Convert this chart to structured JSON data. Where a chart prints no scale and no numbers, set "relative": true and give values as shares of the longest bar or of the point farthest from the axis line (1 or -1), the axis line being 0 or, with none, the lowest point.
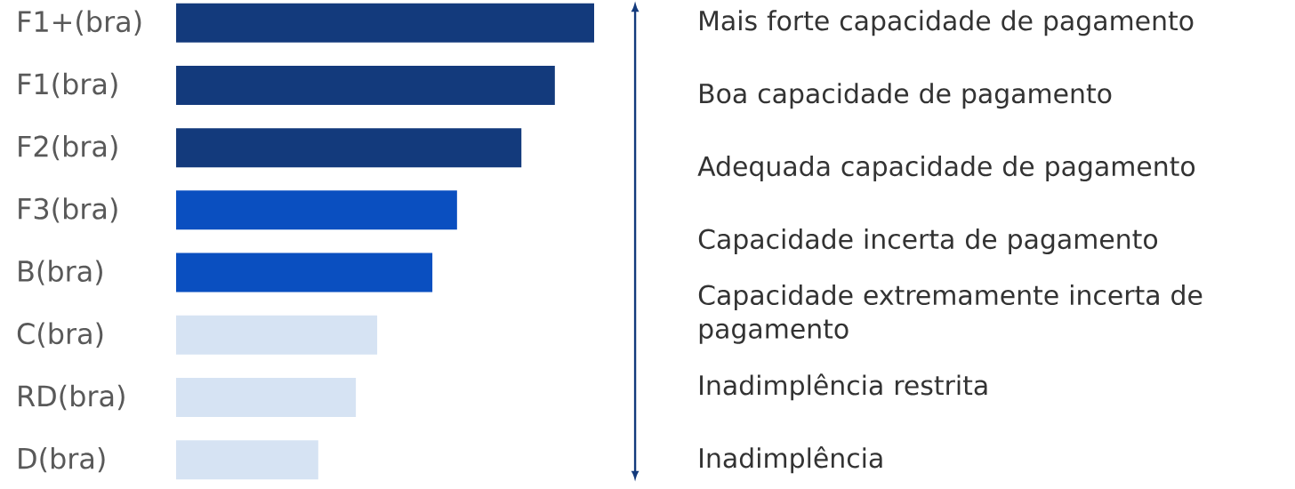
{
  "chart_data": {
    "type": "bar",
    "orientation": "horizontal",
    "relative": true,
    "categories": [
      "F1+(bra)",
      "F1(bra)",
      "F2(bra)",
      "F3(bra)",
      "B(bra)",
      "C(bra)",
      "RD(bra)",
      "D(bra)"
    ],
    "values": [
      1,
      0.906,
      0.826,
      0.672,
      0.613,
      0.481,
      0.43,
      0.34
    ],
    "colors": [
      "#133a7c",
      "#133a7c",
      "#133a7c",
      "#0a4fc0",
      "#0a4fc0",
      "#d6e3f3",
      "#d6e3f3",
      "#d6e3f3"
    ],
    "annotations": [
      "Mais forte capacidade de pagamento",
      "Boa capacidade de pagamento",
      "Adequada capacidade de pagamento",
      "Capacidade incerta de pagamento",
      "Capacidade extremamente incerta de pagamento",
      "Inadimplência restrita",
      "Inadimplência"
    ]
  }
}
